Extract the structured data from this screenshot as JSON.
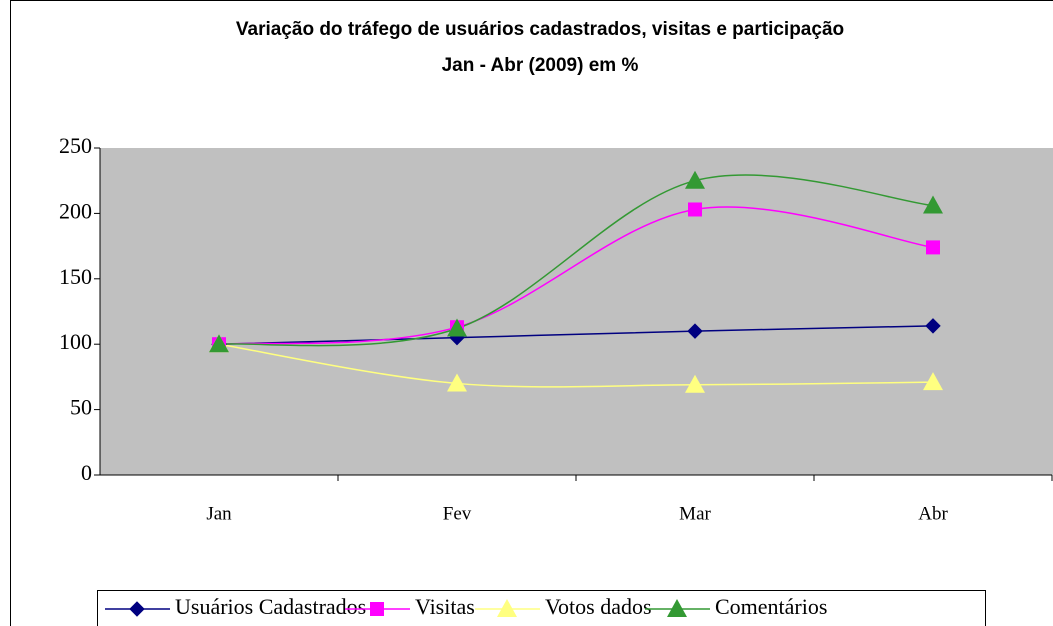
{
  "chart_data": {
    "type": "line",
    "title": "Variação do tráfego de usuários cadastrados, visitas e participação",
    "subtitle": "Jan - Abr (2009) em %",
    "categories": [
      "Jan",
      "Fev",
      "Mar",
      "Abr"
    ],
    "series": [
      {
        "name": "Usuários Cadastrados",
        "color": "#000080",
        "marker": "diamond",
        "values": [
          100,
          105,
          110,
          114
        ]
      },
      {
        "name": "Visitas",
        "color": "#ff00ff",
        "marker": "square",
        "values": [
          100,
          113,
          203,
          174
        ]
      },
      {
        "name": "Votos dados",
        "color": "#ffff80",
        "marker": "triangle",
        "values": [
          100,
          70,
          69,
          71
        ]
      },
      {
        "name": "Comentários",
        "color": "#339933",
        "marker": "triangle",
        "values": [
          100,
          112,
          225,
          206
        ]
      }
    ],
    "ylim": [
      0,
      250
    ],
    "yticks": [
      0,
      50,
      100,
      150,
      200,
      250
    ],
    "smooth": true
  }
}
